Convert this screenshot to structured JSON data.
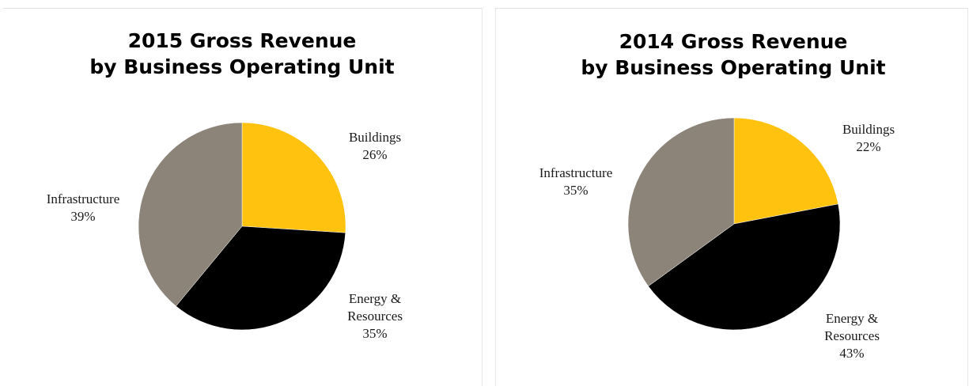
{
  "chart_data": [
    {
      "type": "pie",
      "title": [
        "2015 Gross Revenue",
        "by Business Operating Unit"
      ],
      "slices": [
        {
          "label": "Buildings",
          "value": 26,
          "value_text": "26%",
          "color": "#FFC20E"
        },
        {
          "label": "Energy &",
          "label2": "Resources",
          "value": 35,
          "value_text": "35%",
          "color": "#000000"
        },
        {
          "label": "Infrastructure",
          "value": 39,
          "value_text": "39%",
          "color": "#8C8479"
        }
      ],
      "start": "12 o'clock",
      "direction": "clockwise"
    },
    {
      "type": "pie",
      "title": [
        "2014 Gross Revenue",
        "by Business Operating Unit"
      ],
      "slices": [
        {
          "label": "Buildings",
          "value": 22,
          "value_text": "22%",
          "color": "#FFC20E"
        },
        {
          "label": "Energy &",
          "label2": "Resources",
          "value": 43,
          "value_text": "43%",
          "color": "#000000"
        },
        {
          "label": "Infrastructure",
          "value": 35,
          "value_text": "35%",
          "color": "#8C8479"
        }
      ],
      "start": "12 o'clock",
      "direction": "clockwise"
    }
  ]
}
